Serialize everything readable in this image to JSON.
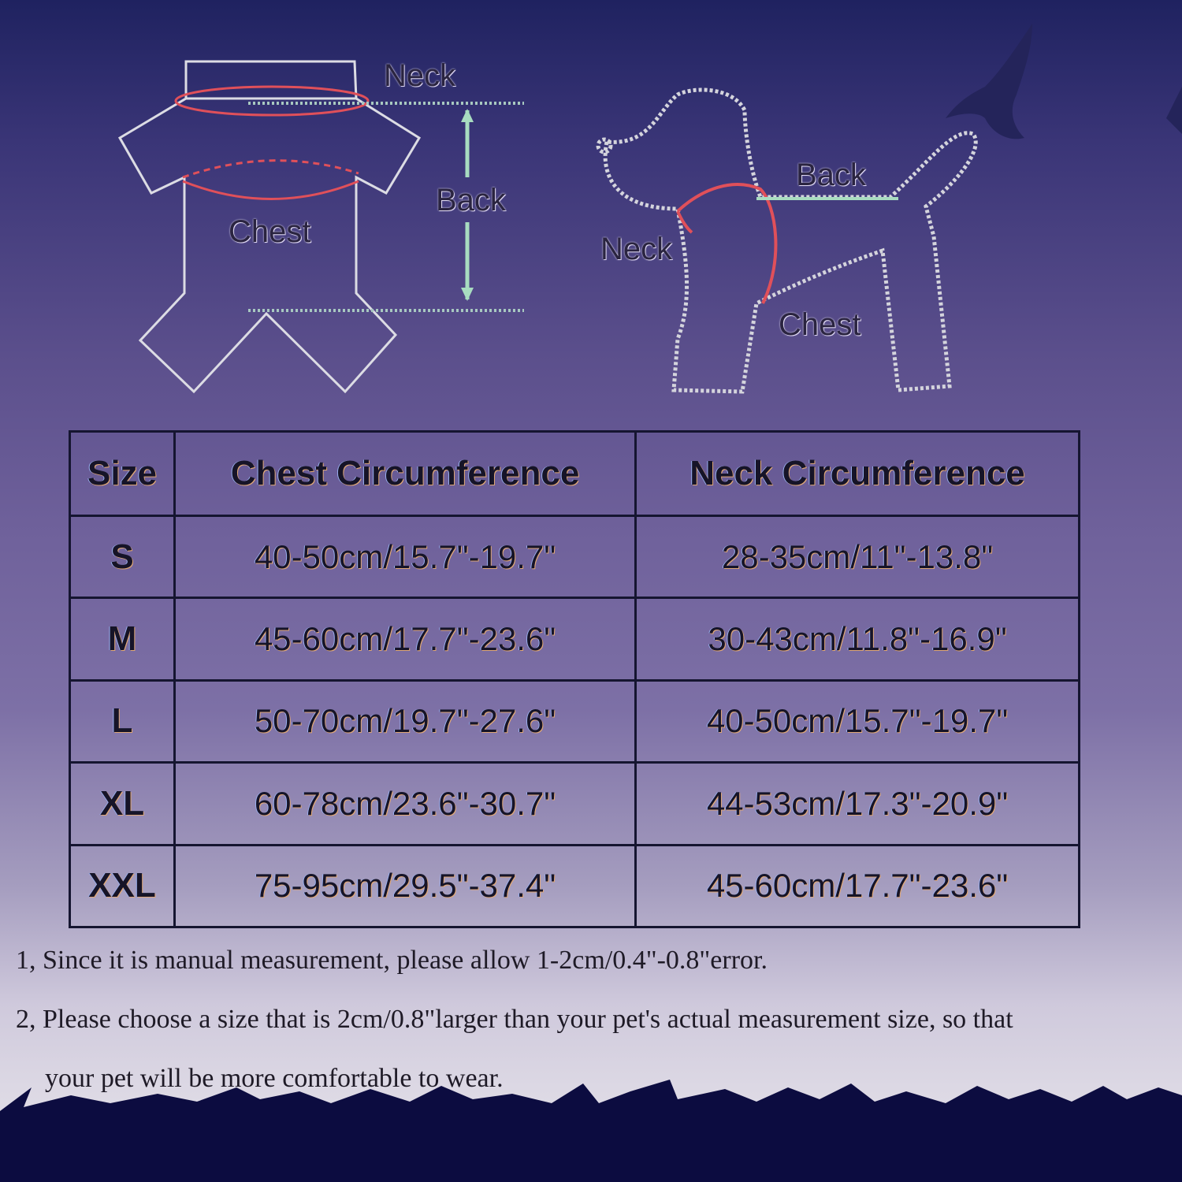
{
  "diagram": {
    "garment_labels": {
      "neck": "Neck",
      "back": "Back",
      "chest": "Chest"
    },
    "dog_labels": {
      "neck": "Neck",
      "back": "Back",
      "chest": "Chest"
    }
  },
  "table": {
    "headers": [
      "Size",
      "Chest Circumference",
      "Neck Circumference"
    ],
    "rows": [
      {
        "size": "S",
        "chest": "40-50cm/15.7\"-19.7\"",
        "neck": "28-35cm/11\"-13.8\""
      },
      {
        "size": "M",
        "chest": "45-60cm/17.7\"-23.6\"",
        "neck": "30-43cm/11.8\"-16.9\""
      },
      {
        "size": "L",
        "chest": "50-70cm/19.7\"-27.6\"",
        "neck": "40-50cm/15.7\"-19.7\""
      },
      {
        "size": "XL",
        "chest": "60-78cm/23.6\"-30.7\"",
        "neck": "44-53cm/17.3\"-20.9\""
      },
      {
        "size": "XXL",
        "chest": "75-95cm/29.5\"-37.4\"",
        "neck": "45-60cm/17.7\"-23.6\""
      }
    ]
  },
  "notes": [
    "1, Since it is manual measurement, please allow 1-2cm/0.4\"-0.8\"error.",
    "2, Please choose a size that is 2cm/0.8\"larger than your pet's actual measurement size, so that",
    "your pet will be more comfortable to wear."
  ],
  "colors": {
    "measure_line": "#e0505a",
    "arrow": "#a8dcc0",
    "outline": "#d8d8e0",
    "ground": "#0c0c40"
  }
}
